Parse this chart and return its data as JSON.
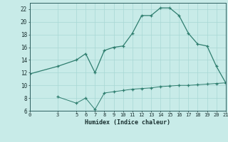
{
  "line1_x": [
    0,
    3,
    5,
    6,
    7,
    8,
    9,
    10,
    11,
    12,
    13,
    14,
    15,
    16,
    17,
    18,
    19,
    20,
    21
  ],
  "line1_y": [
    11.8,
    13.0,
    14.0,
    15.0,
    12.0,
    15.5,
    16.0,
    16.2,
    18.2,
    21.0,
    21.0,
    22.2,
    22.2,
    21.0,
    18.2,
    16.5,
    16.2,
    13.0,
    10.4
  ],
  "line2_x": [
    3,
    5,
    6,
    7,
    8,
    9,
    10,
    11,
    12,
    13,
    14,
    15,
    16,
    17,
    18,
    19,
    20,
    21
  ],
  "line2_y": [
    8.2,
    7.2,
    8.0,
    6.2,
    8.8,
    9.0,
    9.2,
    9.4,
    9.5,
    9.6,
    9.8,
    9.9,
    10.0,
    10.0,
    10.1,
    10.2,
    10.3,
    10.4
  ],
  "line_color": "#2e7d6e",
  "bg_color": "#c8ebe8",
  "grid_color": "#a8d8d4",
  "xlabel": "Humidex (Indice chaleur)",
  "ylim": [
    6,
    23
  ],
  "xlim": [
    0,
    21
  ],
  "yticks": [
    6,
    8,
    10,
    12,
    14,
    16,
    18,
    20,
    22
  ],
  "xticks": [
    0,
    3,
    5,
    6,
    7,
    8,
    9,
    10,
    11,
    12,
    13,
    14,
    15,
    16,
    17,
    18,
    19,
    20,
    21
  ]
}
